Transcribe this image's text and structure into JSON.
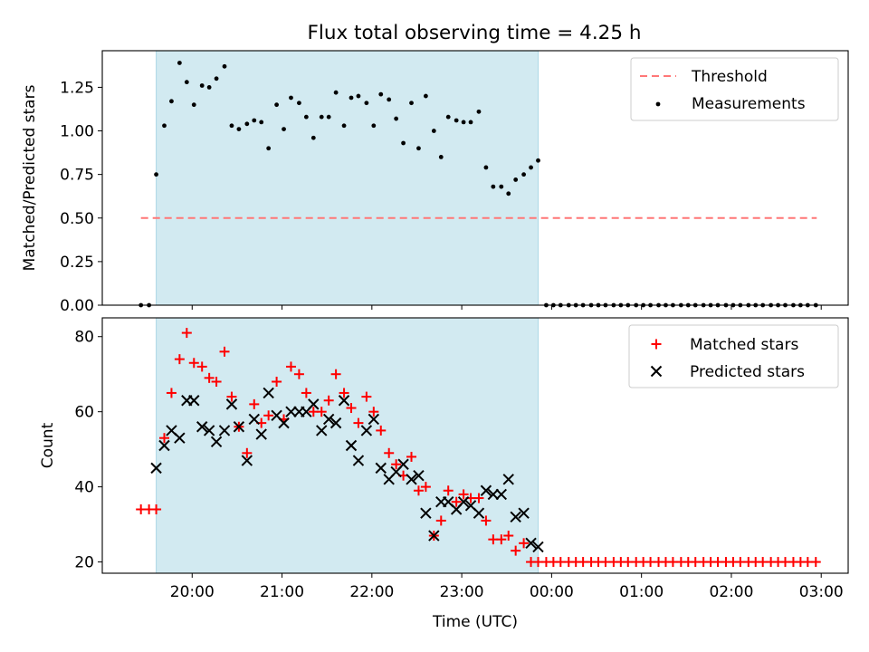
{
  "title": "Flux total observing time = 4.25 h",
  "colors": {
    "shade": "#add8e6",
    "threshold": "#ff7777",
    "matched": "#ff0000",
    "predicted": "#000000",
    "measure": "#000000"
  },
  "chart_data": [
    {
      "type": "scatter",
      "ylabel": "Matched/Predicted stars",
      "xlabel": "",
      "xlim": [
        19.0,
        27.3
      ],
      "ylim": [
        0.0,
        1.46
      ],
      "yticks": [
        "0.00",
        "0.25",
        "0.50",
        "0.75",
        "1.00",
        "1.25"
      ],
      "shaded_interval": [
        19.6,
        23.85
      ],
      "legend_position": "upper right",
      "threshold": {
        "name": "Threshold",
        "y": 0.5,
        "x": [
          19.43,
          26.95
        ]
      },
      "series": [
        {
          "name": "Measurements",
          "x": [
            19.43,
            19.52,
            19.6,
            19.69,
            19.77,
            19.86,
            19.94,
            20.02,
            20.11,
            20.19,
            20.27,
            20.36,
            20.44,
            20.52,
            20.61,
            20.69,
            20.77,
            20.85,
            20.94,
            21.02,
            21.1,
            21.19,
            21.27,
            21.35,
            21.44,
            21.52,
            21.6,
            21.69,
            21.77,
            21.85,
            21.94,
            22.02,
            22.1,
            22.19,
            22.27,
            22.35,
            22.44,
            22.52,
            22.6,
            22.69,
            22.77,
            22.85,
            22.94,
            23.02,
            23.1,
            23.19,
            23.27,
            23.35,
            23.44,
            23.52,
            23.6,
            23.69,
            23.77,
            23.85,
            23.94,
            24.02,
            24.1,
            24.19,
            24.27,
            24.35,
            24.44,
            24.52,
            24.6,
            24.69,
            24.77,
            24.85,
            24.94,
            25.02,
            25.1,
            25.19,
            25.27,
            25.35,
            25.44,
            25.52,
            25.6,
            25.69,
            25.77,
            25.85,
            25.94,
            26.02,
            26.1,
            26.19,
            26.27,
            26.35,
            26.44,
            26.52,
            26.6,
            26.69,
            26.77,
            26.85,
            26.94
          ],
          "y": [
            0.0,
            0.0,
            0.75,
            1.03,
            1.17,
            1.39,
            1.28,
            1.15,
            1.26,
            1.25,
            1.3,
            1.37,
            1.03,
            1.01,
            1.04,
            1.06,
            1.05,
            0.9,
            1.15,
            1.01,
            1.19,
            1.16,
            1.08,
            0.96,
            1.08,
            1.08,
            1.22,
            1.03,
            1.19,
            1.2,
            1.16,
            1.03,
            1.21,
            1.18,
            1.07,
            0.93,
            1.16,
            0.9,
            1.2,
            1.0,
            0.85,
            1.08,
            1.06,
            1.05,
            1.05,
            1.11,
            0.79,
            0.68,
            0.68,
            0.64,
            0.72,
            0.75,
            0.79,
            0.83,
            0.0,
            0.0,
            0.0,
            0.0,
            0.0,
            0.0,
            0.0,
            0.0,
            0.0,
            0.0,
            0.0,
            0.0,
            0.0,
            0.0,
            0.0,
            0.0,
            0.0,
            0.0,
            0.0,
            0.0,
            0.0,
            0.0,
            0.0,
            0.0,
            0.0,
            0.0,
            0.0,
            0.0,
            0.0,
            0.0,
            0.0,
            0.0,
            0.0,
            0.0,
            0.0,
            0.0,
            0.0
          ]
        }
      ]
    },
    {
      "type": "scatter",
      "ylabel": "Count",
      "xlabel": "Time (UTC)",
      "xlim": [
        19.0,
        27.3
      ],
      "ylim": [
        17,
        85
      ],
      "yticks": [
        "20",
        "40",
        "60",
        "80"
      ],
      "xticks": [
        {
          "value": 20,
          "label": "20:00"
        },
        {
          "value": 21,
          "label": "21:00"
        },
        {
          "value": 22,
          "label": "22:00"
        },
        {
          "value": 23,
          "label": "23:00"
        },
        {
          "value": 24,
          "label": "00:00"
        },
        {
          "value": 25,
          "label": "01:00"
        },
        {
          "value": 26,
          "label": "02:00"
        },
        {
          "value": 27,
          "label": "03:00"
        }
      ],
      "shaded_interval": [
        19.6,
        23.85
      ],
      "legend_position": "upper right",
      "series": [
        {
          "name": "Matched stars",
          "marker": "+",
          "x": [
            19.43,
            19.52,
            19.6,
            19.69,
            19.77,
            19.86,
            19.94,
            20.02,
            20.11,
            20.19,
            20.27,
            20.36,
            20.44,
            20.52,
            20.61,
            20.69,
            20.77,
            20.85,
            20.94,
            21.02,
            21.1,
            21.19,
            21.27,
            21.35,
            21.44,
            21.52,
            21.6,
            21.69,
            21.77,
            21.85,
            21.94,
            22.02,
            22.1,
            22.19,
            22.27,
            22.35,
            22.44,
            22.52,
            22.6,
            22.69,
            22.77,
            22.85,
            22.94,
            23.02,
            23.1,
            23.19,
            23.27,
            23.35,
            23.44,
            23.52,
            23.6,
            23.69,
            23.77,
            23.85,
            23.94,
            24.02,
            24.1,
            24.19,
            24.27,
            24.35,
            24.44,
            24.52,
            24.6,
            24.69,
            24.77,
            24.85,
            24.94,
            25.02,
            25.1,
            25.19,
            25.27,
            25.35,
            25.44,
            25.52,
            25.6,
            25.69,
            25.77,
            25.85,
            25.94,
            26.02,
            26.1,
            26.19,
            26.27,
            26.35,
            26.44,
            26.52,
            26.6,
            26.69,
            26.77,
            26.85,
            26.94
          ],
          "y": [
            34,
            34,
            34,
            53,
            65,
            74,
            81,
            73,
            72,
            69,
            68,
            76,
            64,
            56,
            49,
            62,
            57,
            59,
            68,
            58,
            72,
            70,
            65,
            60,
            60,
            63,
            70,
            65,
            61,
            57,
            64,
            60,
            55,
            49,
            46,
            43,
            48,
            39,
            40,
            27,
            31,
            39,
            36,
            38,
            37,
            37,
            31,
            26,
            26,
            27,
            23,
            25,
            20,
            20,
            20,
            20,
            20,
            20,
            20,
            20,
            20,
            20,
            20,
            20,
            20,
            20,
            20,
            20,
            20,
            20,
            20,
            20,
            20,
            20,
            20,
            20,
            20,
            20,
            20,
            20,
            20,
            20,
            20,
            20,
            20,
            20,
            20,
            20,
            20,
            20,
            20
          ]
        },
        {
          "name": "Predicted stars",
          "marker": "x",
          "x": [
            19.6,
            19.69,
            19.77,
            19.86,
            19.94,
            20.02,
            20.11,
            20.19,
            20.27,
            20.36,
            20.44,
            20.52,
            20.61,
            20.69,
            20.77,
            20.85,
            20.94,
            21.02,
            21.1,
            21.19,
            21.27,
            21.35,
            21.44,
            21.52,
            21.6,
            21.69,
            21.77,
            21.85,
            21.94,
            22.02,
            22.1,
            22.19,
            22.27,
            22.35,
            22.44,
            22.52,
            22.6,
            22.69,
            22.77,
            22.85,
            22.94,
            23.02,
            23.1,
            23.19,
            23.27,
            23.35,
            23.44,
            23.52,
            23.6,
            23.69,
            23.77,
            23.85
          ],
          "y": [
            45,
            51,
            55,
            53,
            63,
            63,
            56,
            55,
            52,
            55,
            62,
            56,
            47,
            58,
            54,
            65,
            59,
            57,
            60,
            60,
            60,
            62,
            55,
            58,
            57,
            63,
            51,
            47,
            55,
            58,
            45,
            42,
            44,
            46,
            42,
            43,
            33,
            27,
            36,
            36,
            34,
            36,
            35,
            33,
            39,
            38,
            38,
            42,
            32,
            33,
            25,
            24
          ]
        }
      ]
    }
  ]
}
